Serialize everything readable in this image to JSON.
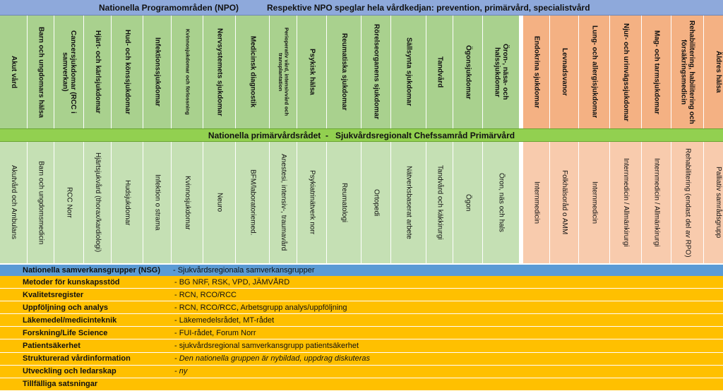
{
  "header": {
    "left": "Nationella Programområden (NPO)",
    "right": "Respektive NPO speglar hela vårdkedjan: prevention, primärvård, specialistvård"
  },
  "npo": [
    {
      "label": "Akut vård",
      "color": "g",
      "w": 39
    },
    {
      "label": "Barn och ungdomars hälsa",
      "color": "g",
      "w": 38
    },
    {
      "label": "Cancersjukdomar (RCC i samverkan)",
      "color": "g",
      "w": 42
    },
    {
      "label": "Hjärt- och kärlsjukdomar",
      "color": "g",
      "w": 39
    },
    {
      "label": "Hud- och könssjukdomar",
      "color": "g",
      "w": 45
    },
    {
      "label": "Infektionssjukdomar",
      "color": "g",
      "w": 40
    },
    {
      "label": "Kvinnosjukdomar och förlossning",
      "color": "g",
      "w": 45,
      "small": true
    },
    {
      "label": "Nervsystemets sjukdomar",
      "color": "g",
      "w": 46
    },
    {
      "label": "Medicinsk diagnostik",
      "color": "g",
      "w": 48
    },
    {
      "label": "Perioperativ vård, intensivvård och transplantation",
      "color": "g",
      "w": 39,
      "small": true
    },
    {
      "label": "Psykisk hälsa",
      "color": "g",
      "w": 42
    },
    {
      "label": "Reumatiska sjukdomar",
      "color": "g",
      "w": 49
    },
    {
      "label": "Rörelseorganens sjukdomar",
      "color": "g",
      "w": 42
    },
    {
      "label": "Sällsynta sjukdomar",
      "color": "g",
      "w": 50
    },
    {
      "label": "Tandvård",
      "color": "g",
      "w": 38
    },
    {
      "label": "Ögonsjukdomar",
      "color": "g",
      "w": 42
    },
    {
      "label": "Öron-, näsa- och halssjukdomar",
      "color": "g",
      "w": 52
    },
    {
      "label": "Endokrina sjukdomar",
      "color": "o",
      "w": 43
    },
    {
      "label": "Levnadsvanor",
      "color": "o",
      "w": 41
    },
    {
      "label": "Lung- och allergisjukdomar",
      "color": "o",
      "w": 44
    },
    {
      "label": "Njur- och urinvägssjukdomar",
      "color": "o",
      "w": 45
    },
    {
      "label": "Mag- och tarmsjukdomar",
      "color": "o",
      "w": 42
    },
    {
      "label": "Rehabilitering, habilitering och försäkringsmedicin",
      "color": "o",
      "w": 46
    },
    {
      "label": "Äldres hälsa",
      "color": "o",
      "w": 41
    }
  ],
  "primary_care_banner": "Nationella primärvårdsrådet  -   Sjukvårdsregionalt Chefssamråd Primärvård",
  "primary_care": [
    "Akutvård och Ambulans",
    "Barn och ungdomsmedicin",
    "RCC Norr",
    "Hjärtsjukvård (thorax/kardiologi)",
    "Hudsjukdomar",
    "Infektion o strama",
    "Kvinnosjukdomar",
    "Neuro",
    "BFM/laboratoriemed.",
    "Anestesi, intensiv-, traumavård",
    "Psykiatrinätverk norr",
    "Reumatologi",
    "Ortopedi",
    "Nätverksbaserat arbete",
    "Tandvård och käkkirurgi",
    "Ögon",
    "Öron, näs och hals",
    "Internmedicin",
    "Folkhälsoråd o AMM",
    "Internmedicin",
    "Internmedicin / Allmänkirurgi",
    "Internmedicin / Allmänkirurgi",
    "Rehabilitering (endast del av RPO)",
    "Palliativ samrådsgrupp"
  ],
  "nsg": {
    "label": "Nationella samverkansgrupper (NSG)",
    "value": "- Sjukvårdsregionala samverkansgrupper"
  },
  "rows": [
    {
      "label": "Metoder för kunskapsstöd",
      "value": "- BG NRF, RSK, VPD, JÄMVÅRD"
    },
    {
      "label": "Kvalitetsregister",
      "value": "- RCN, RCO/RCC"
    },
    {
      "label": "Uppföljning och analys",
      "value": "- RCN, RCO/RCC, Arbetsgrupp analys/uppföljning"
    },
    {
      "label": "Läkemedel/medicinteknik",
      "value": "- Läkemedelsrådet, MT-rådet"
    },
    {
      "label": "Forskning/Life Science",
      "value": "- FUI-rådet, Forum Norr"
    },
    {
      "label": "Patientsäkerhet",
      "value": "- sjukvårdsregional samverkansgrupp patientsäkerhet"
    },
    {
      "label": "Strukturerad vårdinformation",
      "value": "- Den nationella gruppen är nybildad, uppdrag diskuteras",
      "italic": true
    },
    {
      "label": "Utveckling och ledarskap",
      "value": "- ny",
      "italic": true
    },
    {
      "label": "Tillfälliga satsningar",
      "value": ""
    }
  ]
}
